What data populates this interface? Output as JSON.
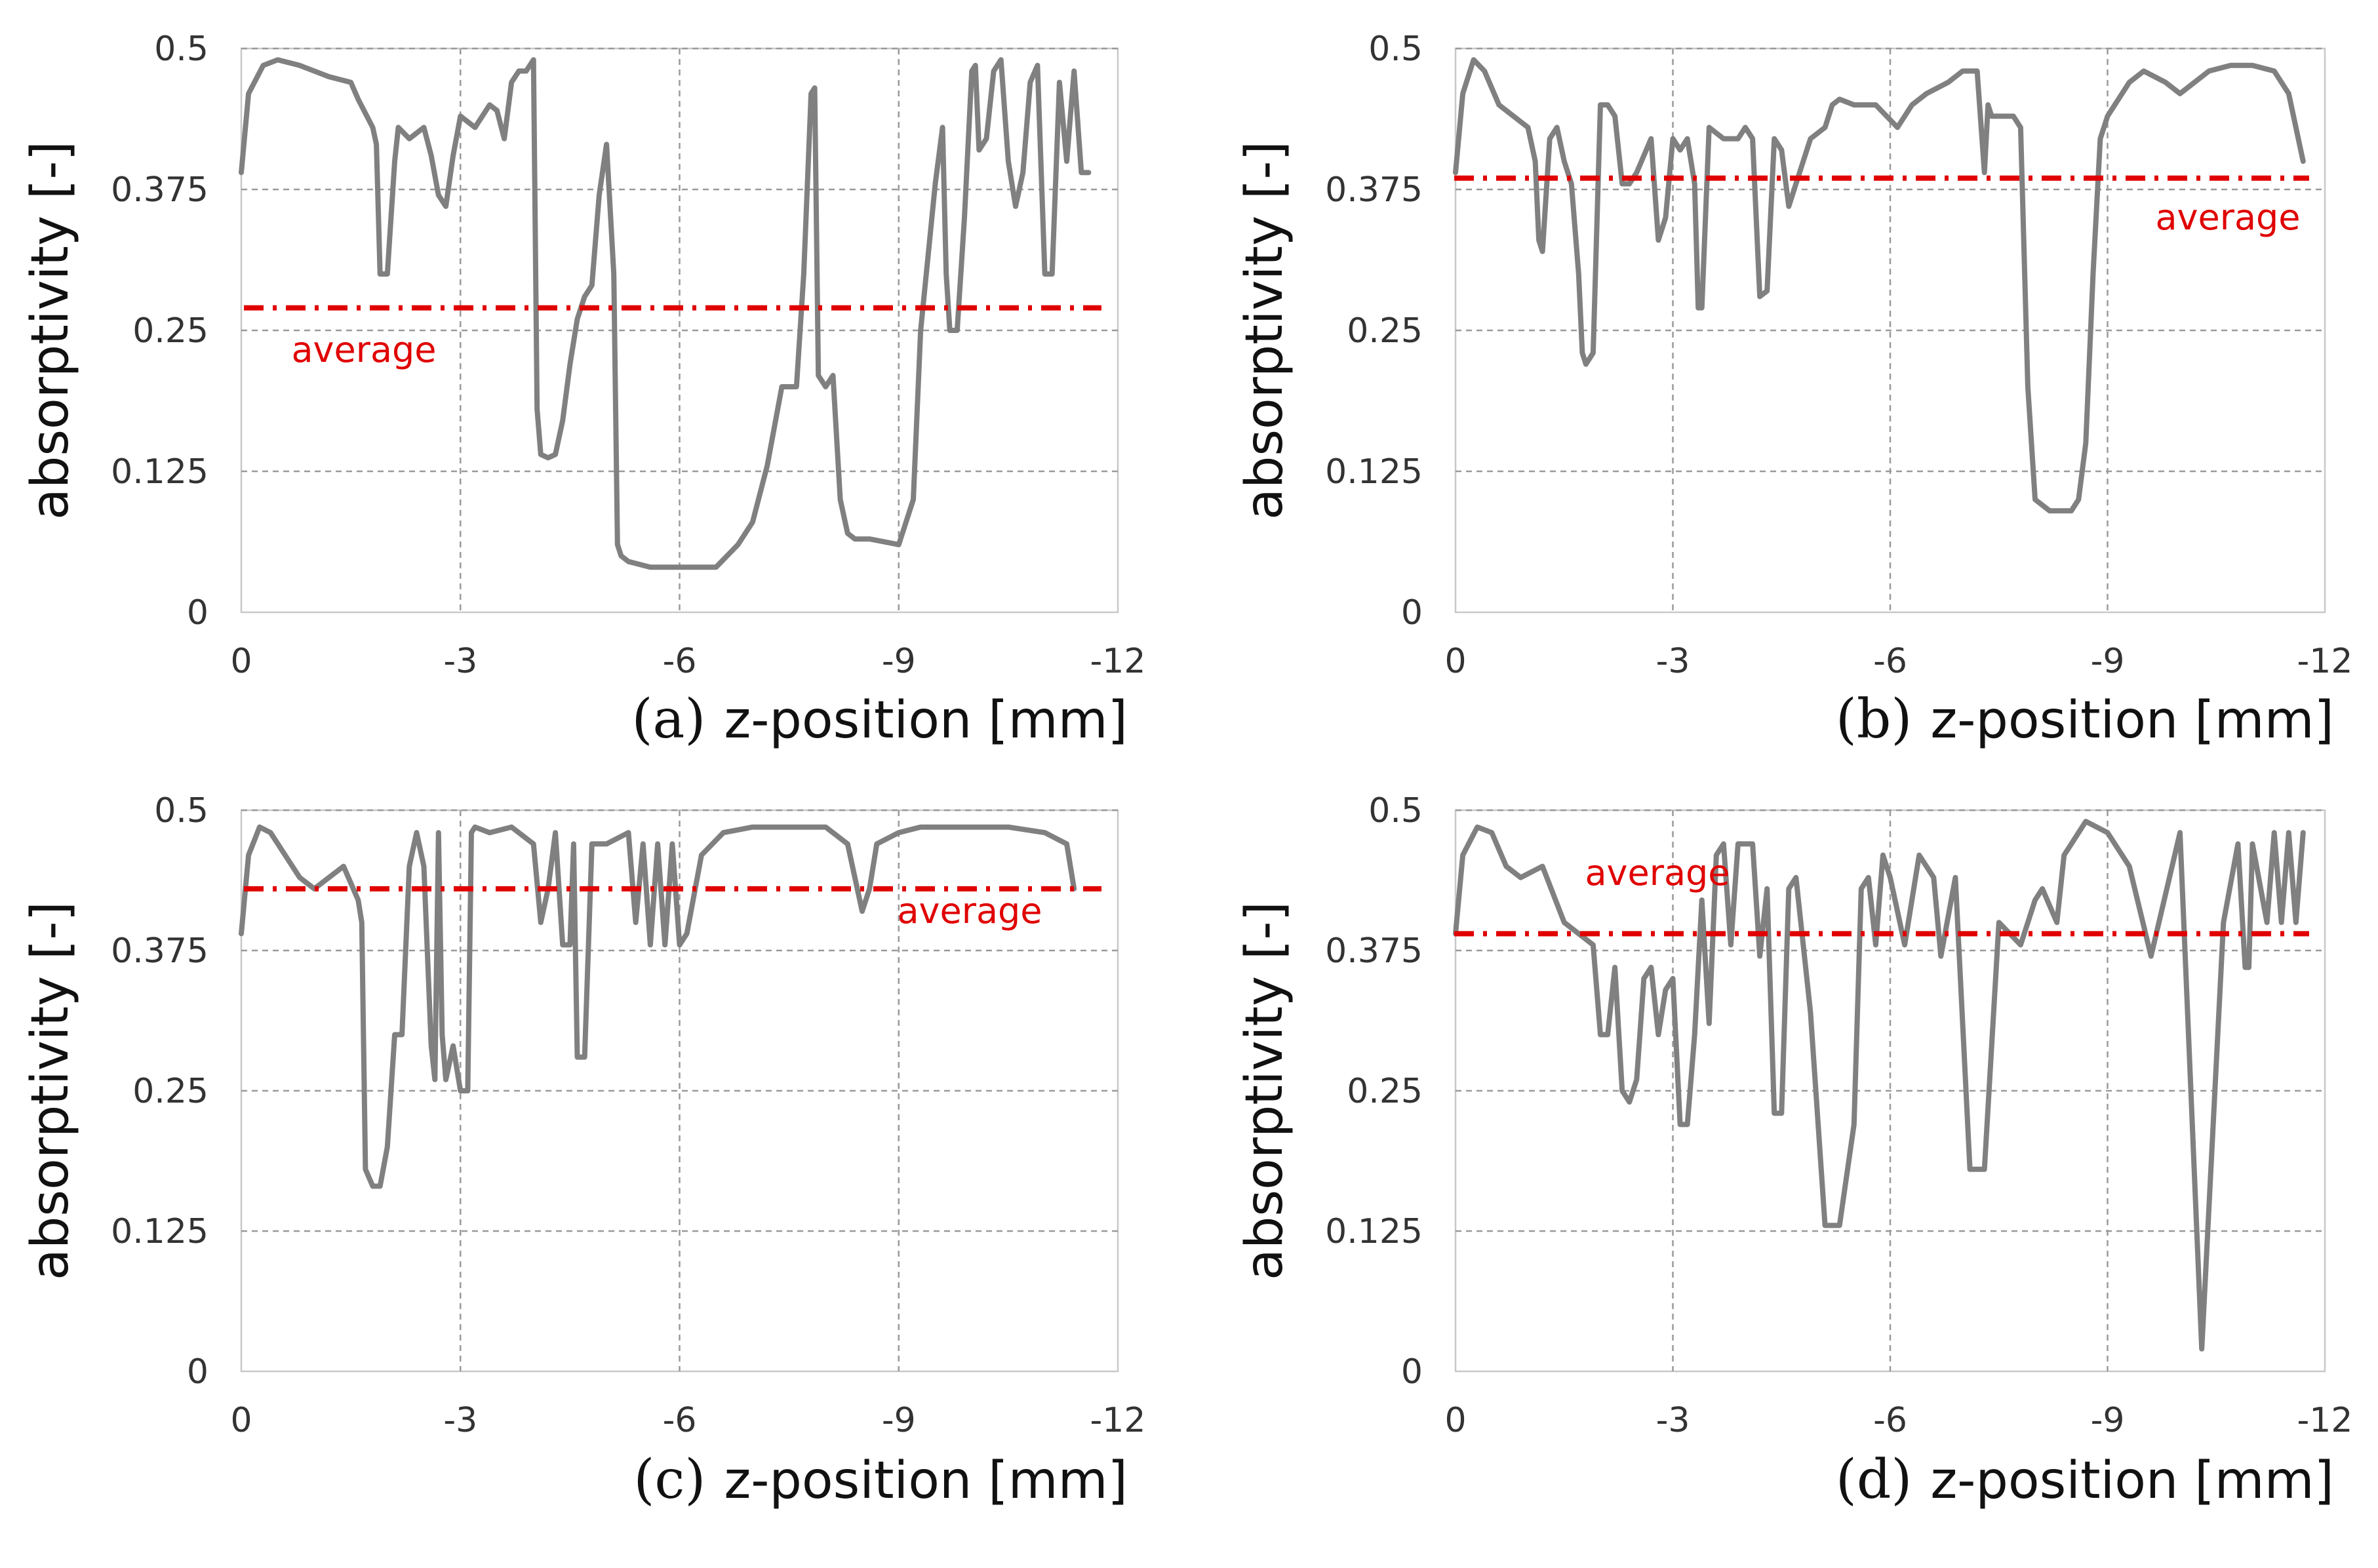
{
  "style": {
    "line_color": "#808080",
    "average_color": "#e00000",
    "grid_color": "#9a9a9a"
  },
  "chart_data": [
    {
      "type": "line",
      "panel_label": "(a)",
      "xlabel": "z-position [mm]",
      "ylabel": "absorptivity [-]",
      "xlim": [
        0,
        -12
      ],
      "ylim": [
        0,
        0.5
      ],
      "xticks": [
        0,
        -3,
        -6,
        -9,
        -12
      ],
      "yticks": [
        0,
        0.125,
        0.25,
        0.375,
        0.5
      ],
      "xtick_labels": [
        "0",
        "-3",
        "-6",
        "-9",
        "-12"
      ],
      "ytick_labels": [
        "0",
        "0.125",
        "0.25",
        "0.375",
        "0.5"
      ],
      "average": {
        "value": 0.27,
        "label": "average"
      },
      "series": [
        {
          "name": "absorptivity",
          "x": [
            0,
            -0.1,
            -0.3,
            -0.5,
            -0.8,
            -1.2,
            -1.5,
            -1.6,
            -1.8,
            -1.85,
            -1.9,
            -2.0,
            -2.1,
            -2.15,
            -2.3,
            -2.5,
            -2.6,
            -2.7,
            -2.8,
            -2.9,
            -3.0,
            -3.2,
            -3.4,
            -3.5,
            -3.6,
            -3.7,
            -3.8,
            -3.9,
            -4.0,
            -4.05,
            -4.1,
            -4.2,
            -4.3,
            -4.4,
            -4.5,
            -4.6,
            -4.7,
            -4.8,
            -4.9,
            -5.0,
            -5.1,
            -5.15,
            -5.2,
            -5.3,
            -5.6,
            -6.0,
            -6.5,
            -6.8,
            -7.0,
            -7.2,
            -7.4,
            -7.6,
            -7.7,
            -7.8,
            -7.85,
            -7.9,
            -8.0,
            -8.1,
            -8.2,
            -8.3,
            -8.4,
            -8.6,
            -9.0,
            -9.2,
            -9.3,
            -9.5,
            -9.6,
            -9.65,
            -9.7,
            -9.8,
            -9.9,
            -10.0,
            -10.05,
            -10.1,
            -10.2,
            -10.3,
            -10.4,
            -10.5,
            -10.6,
            -10.7,
            -10.8,
            -10.9,
            -11.0,
            -11.1,
            -11.2,
            -11.3,
            -11.4,
            -11.5,
            -11.6
          ],
          "values": [
            0.39,
            0.46,
            0.485,
            0.49,
            0.485,
            0.475,
            0.47,
            0.455,
            0.43,
            0.415,
            0.3,
            0.3,
            0.4,
            0.43,
            0.42,
            0.43,
            0.405,
            0.37,
            0.36,
            0.405,
            0.44,
            0.43,
            0.45,
            0.445,
            0.42,
            0.47,
            0.48,
            0.48,
            0.49,
            0.18,
            0.14,
            0.137,
            0.14,
            0.17,
            0.22,
            0.26,
            0.28,
            0.29,
            0.37,
            0.415,
            0.3,
            0.06,
            0.05,
            0.045,
            0.04,
            0.04,
            0.04,
            0.06,
            0.08,
            0.13,
            0.2,
            0.2,
            0.3,
            0.46,
            0.465,
            0.21,
            0.2,
            0.21,
            0.1,
            0.07,
            0.065,
            0.065,
            0.06,
            0.1,
            0.25,
            0.38,
            0.43,
            0.3,
            0.25,
            0.25,
            0.35,
            0.48,
            0.485,
            0.41,
            0.42,
            0.48,
            0.49,
            0.4,
            0.36,
            0.39,
            0.47,
            0.485,
            0.3,
            0.3,
            0.47,
            0.4,
            0.48,
            0.39,
            0.39
          ]
        }
      ]
    },
    {
      "type": "line",
      "panel_label": "(b)",
      "xlabel": "z-position [mm]",
      "ylabel": "absorptivity [-]",
      "xlim": [
        0,
        -12
      ],
      "ylim": [
        0,
        0.5
      ],
      "xticks": [
        0,
        -3,
        -6,
        -9,
        -12
      ],
      "yticks": [
        0,
        0.125,
        0.25,
        0.375,
        0.5
      ],
      "xtick_labels": [
        "0",
        "-3",
        "-6",
        "-9",
        "-12"
      ],
      "ytick_labels": [
        "0",
        "0.125",
        "0.25",
        "0.375",
        "0.5"
      ],
      "average": {
        "value": 0.385,
        "label": "average"
      },
      "series": [
        {
          "name": "absorptivity",
          "x": [
            0,
            -0.1,
            -0.25,
            -0.4,
            -0.6,
            -0.8,
            -1.0,
            -1.1,
            -1.15,
            -1.2,
            -1.3,
            -1.4,
            -1.5,
            -1.6,
            -1.7,
            -1.75,
            -1.8,
            -1.9,
            -2.0,
            -2.1,
            -2.2,
            -2.3,
            -2.4,
            -2.5,
            -2.7,
            -2.8,
            -2.9,
            -3.0,
            -3.1,
            -3.2,
            -3.3,
            -3.35,
            -3.4,
            -3.5,
            -3.7,
            -3.9,
            -4.0,
            -4.1,
            -4.2,
            -4.3,
            -4.4,
            -4.5,
            -4.6,
            -4.7,
            -4.9,
            -5.1,
            -5.2,
            -5.3,
            -5.5,
            -5.8,
            -6.1,
            -6.3,
            -6.5,
            -6.8,
            -7.0,
            -7.2,
            -7.3,
            -7.35,
            -7.4,
            -7.6,
            -7.7,
            -7.8,
            -7.9,
            -8.0,
            -8.2,
            -8.5,
            -8.6,
            -8.7,
            -8.8,
            -8.9,
            -9.0,
            -9.3,
            -9.5,
            -9.8,
            -10.0,
            -10.4,
            -10.7,
            -11.0,
            -11.3,
            -11.5,
            -11.7
          ],
          "values": [
            0.39,
            0.46,
            0.49,
            0.48,
            0.45,
            0.44,
            0.43,
            0.4,
            0.33,
            0.32,
            0.42,
            0.43,
            0.4,
            0.38,
            0.3,
            0.23,
            0.22,
            0.23,
            0.45,
            0.45,
            0.44,
            0.38,
            0.38,
            0.39,
            0.42,
            0.33,
            0.35,
            0.42,
            0.41,
            0.42,
            0.38,
            0.27,
            0.27,
            0.43,
            0.42,
            0.42,
            0.43,
            0.42,
            0.28,
            0.285,
            0.42,
            0.41,
            0.36,
            0.38,
            0.42,
            0.43,
            0.45,
            0.455,
            0.45,
            0.45,
            0.43,
            0.45,
            0.46,
            0.47,
            0.48,
            0.48,
            0.39,
            0.45,
            0.44,
            0.44,
            0.44,
            0.43,
            0.2,
            0.1,
            0.09,
            0.09,
            0.1,
            0.15,
            0.3,
            0.42,
            0.44,
            0.47,
            0.48,
            0.47,
            0.46,
            0.48,
            0.485,
            0.485,
            0.48,
            0.46,
            0.4
          ]
        }
      ]
    },
    {
      "type": "line",
      "panel_label": "(c)",
      "xlabel": "z-position [mm]",
      "ylabel": "absorptivity [-]",
      "xlim": [
        0,
        -12
      ],
      "ylim": [
        0,
        0.5
      ],
      "xticks": [
        0,
        -3,
        -6,
        -9,
        -12
      ],
      "yticks": [
        0,
        0.125,
        0.25,
        0.375,
        0.5
      ],
      "xtick_labels": [
        "0",
        "-3",
        "-6",
        "-9",
        "-12"
      ],
      "ytick_labels": [
        "0",
        "0.125",
        "0.25",
        "0.375",
        "0.5"
      ],
      "average": {
        "value": 0.43,
        "label": "average"
      },
      "series": [
        {
          "name": "absorptivity",
          "x": [
            0,
            -0.1,
            -0.25,
            -0.4,
            -0.6,
            -0.8,
            -1.0,
            -1.2,
            -1.4,
            -1.6,
            -1.65,
            -1.7,
            -1.8,
            -1.9,
            -2.0,
            -2.1,
            -2.2,
            -2.3,
            -2.4,
            -2.5,
            -2.6,
            -2.65,
            -2.7,
            -2.75,
            -2.8,
            -2.9,
            -3.0,
            -3.1,
            -3.15,
            -3.2,
            -3.4,
            -3.7,
            -4.0,
            -4.1,
            -4.2,
            -4.3,
            -4.4,
            -4.5,
            -4.55,
            -4.6,
            -4.7,
            -4.8,
            -5.0,
            -5.3,
            -5.4,
            -5.5,
            -5.6,
            -5.7,
            -5.8,
            -5.9,
            -6.0,
            -6.1,
            -6.3,
            -6.6,
            -7.0,
            -7.5,
            -8.0,
            -8.3,
            -8.5,
            -8.6,
            -8.7,
            -9.0,
            -9.3,
            -9.6,
            -10.0,
            -10.5,
            -11.0,
            -11.3,
            -11.4
          ],
          "values": [
            0.39,
            0.46,
            0.485,
            0.48,
            0.46,
            0.44,
            0.43,
            0.44,
            0.45,
            0.42,
            0.4,
            0.18,
            0.165,
            0.165,
            0.2,
            0.3,
            0.3,
            0.45,
            0.48,
            0.45,
            0.29,
            0.26,
            0.48,
            0.3,
            0.26,
            0.29,
            0.25,
            0.25,
            0.48,
            0.485,
            0.48,
            0.485,
            0.47,
            0.4,
            0.43,
            0.48,
            0.38,
            0.38,
            0.47,
            0.28,
            0.28,
            0.47,
            0.47,
            0.48,
            0.4,
            0.47,
            0.38,
            0.47,
            0.38,
            0.47,
            0.38,
            0.39,
            0.46,
            0.48,
            0.485,
            0.485,
            0.485,
            0.47,
            0.41,
            0.43,
            0.47,
            0.48,
            0.485,
            0.485,
            0.485,
            0.485,
            0.48,
            0.47,
            0.43
          ]
        }
      ]
    },
    {
      "type": "line",
      "panel_label": "(d)",
      "xlabel": "z-position [mm]",
      "ylabel": "absorptivity [-]",
      "xlim": [
        0,
        -12
      ],
      "ylim": [
        0,
        0.5
      ],
      "xticks": [
        0,
        -3,
        -6,
        -9,
        -12
      ],
      "yticks": [
        0,
        0.125,
        0.25,
        0.375,
        0.5
      ],
      "xtick_labels": [
        "0",
        "-3",
        "-6",
        "-9",
        "-12"
      ],
      "ytick_labels": [
        "0",
        "0.125",
        "0.25",
        "0.375",
        "0.5"
      ],
      "average": {
        "value": 0.39,
        "label": "average"
      },
      "series": [
        {
          "name": "absorptivity",
          "x": [
            0,
            -0.1,
            -0.3,
            -0.5,
            -0.7,
            -0.9,
            -1.2,
            -1.5,
            -1.7,
            -1.9,
            -2.0,
            -2.1,
            -2.2,
            -2.3,
            -2.4,
            -2.5,
            -2.6,
            -2.7,
            -2.8,
            -2.9,
            -3.0,
            -3.1,
            -3.2,
            -3.3,
            -3.4,
            -3.5,
            -3.6,
            -3.7,
            -3.8,
            -3.9,
            -4.0,
            -4.1,
            -4.2,
            -4.3,
            -4.4,
            -4.5,
            -4.6,
            -4.7,
            -4.9,
            -5.1,
            -5.3,
            -5.5,
            -5.6,
            -5.7,
            -5.8,
            -5.9,
            -6.0,
            -6.2,
            -6.4,
            -6.6,
            -6.7,
            -6.9,
            -7.1,
            -7.3,
            -7.5,
            -7.8,
            -8.0,
            -8.1,
            -8.3,
            -8.4,
            -8.5,
            -8.6,
            -8.7,
            -9.0,
            -9.3,
            -9.6,
            -10.0,
            -10.3,
            -10.6,
            -10.8,
            -10.9,
            -10.95,
            -11.0,
            -11.2,
            -11.3,
            -11.4,
            -11.5,
            -11.6,
            -11.7
          ],
          "values": [
            0.39,
            0.46,
            0.485,
            0.48,
            0.45,
            0.44,
            0.45,
            0.4,
            0.39,
            0.38,
            0.3,
            0.3,
            0.36,
            0.25,
            0.24,
            0.26,
            0.35,
            0.36,
            0.3,
            0.34,
            0.35,
            0.22,
            0.22,
            0.3,
            0.42,
            0.31,
            0.46,
            0.47,
            0.38,
            0.47,
            0.47,
            0.47,
            0.37,
            0.43,
            0.23,
            0.23,
            0.43,
            0.44,
            0.32,
            0.13,
            0.13,
            0.22,
            0.43,
            0.44,
            0.38,
            0.46,
            0.44,
            0.38,
            0.46,
            0.44,
            0.37,
            0.44,
            0.18,
            0.18,
            0.4,
            0.38,
            0.42,
            0.43,
            0.4,
            0.46,
            0.47,
            0.48,
            0.49,
            0.48,
            0.45,
            0.37,
            0.48,
            0.02,
            0.4,
            0.47,
            0.36,
            0.36,
            0.47,
            0.4,
            0.48,
            0.4,
            0.48,
            0.4,
            0.48
          ]
        }
      ]
    }
  ]
}
